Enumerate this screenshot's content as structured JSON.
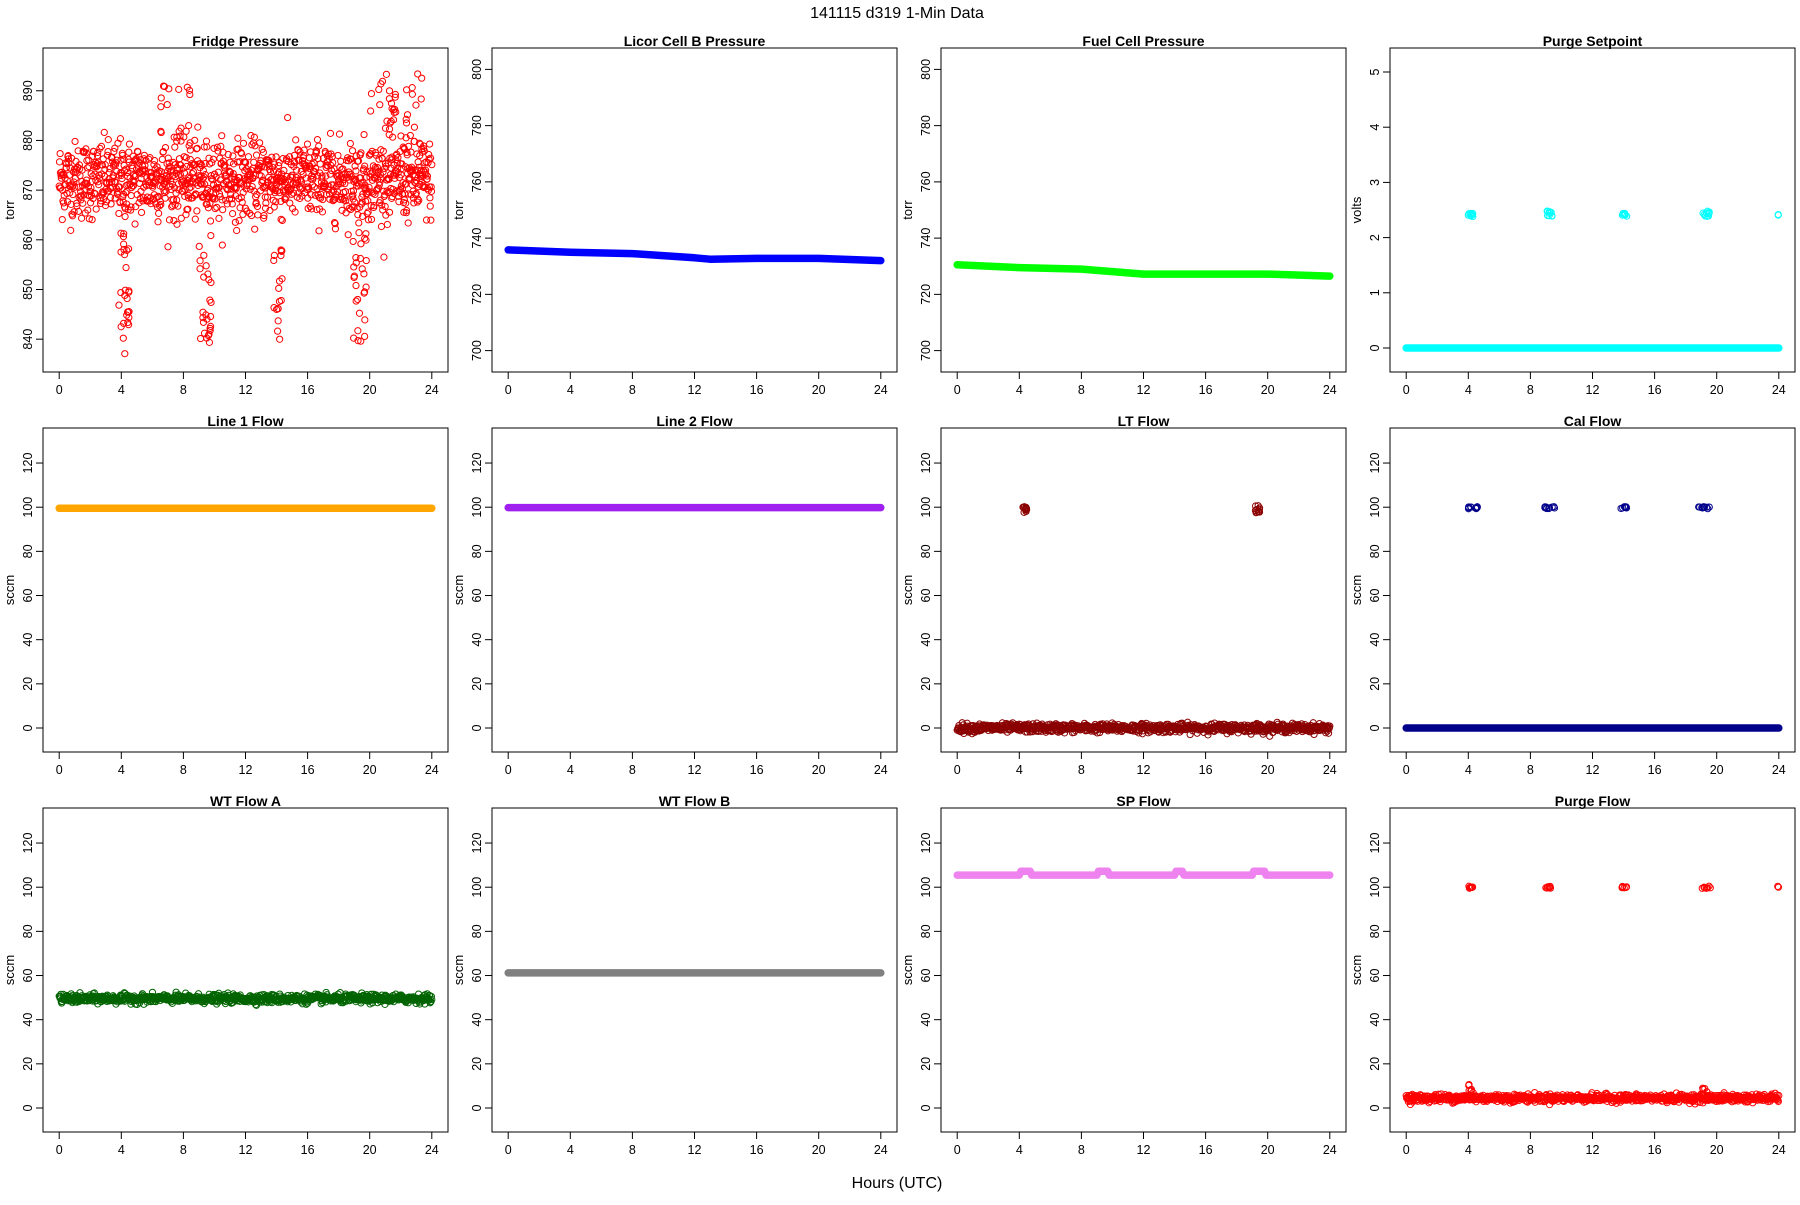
{
  "figure": {
    "title": "141115   d319   1-Min Data",
    "xlabel": "Hours (UTC)"
  },
  "chart_data": [
    {
      "type": "scatter",
      "title": "Fridge Pressure",
      "ylabel": "torr",
      "xlabel": "",
      "xlim": [
        0,
        24
      ],
      "ylim": [
        836,
        896
      ],
      "xticks": [
        0,
        4,
        8,
        12,
        16,
        20,
        24
      ],
      "yticks": [
        840,
        850,
        860,
        870,
        880,
        890
      ],
      "color": "#ff0000",
      "marker": "open-circle",
      "series": [
        {
          "kind": "noise",
          "base": 872,
          "amp": 7,
          "n": 1200
        },
        {
          "kind": "cluster",
          "x": [
            3.8,
            4.5
          ],
          "y": [
            837,
            862
          ],
          "n": 28
        },
        {
          "kind": "cluster",
          "x": [
            9.0,
            9.8
          ],
          "y": [
            838,
            862
          ],
          "n": 26
        },
        {
          "kind": "cluster",
          "x": [
            13.8,
            14.4
          ],
          "y": [
            838,
            860
          ],
          "n": 18
        },
        {
          "kind": "cluster",
          "x": [
            18.9,
            19.8
          ],
          "y": [
            837,
            862
          ],
          "n": 28
        },
        {
          "kind": "cluster",
          "x": [
            20.0,
            23.5
          ],
          "y": [
            878,
            894
          ],
          "n": 40
        },
        {
          "kind": "cluster",
          "x": [
            6.5,
            8.5
          ],
          "y": [
            878,
            892
          ],
          "n": 20
        }
      ]
    },
    {
      "type": "scatter",
      "title": "Licor Cell B Pressure",
      "ylabel": "torr",
      "xlabel": "",
      "xlim": [
        0,
        24
      ],
      "ylim": [
        697,
        803
      ],
      "xticks": [
        0,
        4,
        8,
        12,
        16,
        20,
        24
      ],
      "yticks": [
        700,
        720,
        740,
        760,
        780,
        800
      ],
      "color": "#0000ff",
      "marker": "filled-band",
      "series": [
        {
          "kind": "line",
          "points": [
            [
              0,
              735.8
            ],
            [
              4,
              735
            ],
            [
              8,
              734.5
            ],
            [
              12,
              733
            ],
            [
              13,
              732.5
            ],
            [
              16,
              732.8
            ],
            [
              20,
              732.8
            ],
            [
              24,
              732
            ]
          ]
        }
      ]
    },
    {
      "type": "scatter",
      "title": "Fuel Cell Pressure",
      "ylabel": "torr",
      "xlabel": "",
      "xlim": [
        0,
        24
      ],
      "ylim": [
        697,
        803
      ],
      "xticks": [
        0,
        4,
        8,
        12,
        16,
        20,
        24
      ],
      "yticks": [
        700,
        720,
        740,
        760,
        780,
        800
      ],
      "color": "#00ff00",
      "marker": "filled-band",
      "series": [
        {
          "kind": "line",
          "points": [
            [
              0,
              730.5
            ],
            [
              4,
              729.5
            ],
            [
              8,
              729
            ],
            [
              12,
              727.2
            ],
            [
              16,
              727.2
            ],
            [
              20,
              727.2
            ],
            [
              24,
              726.5
            ]
          ]
        }
      ]
    },
    {
      "type": "scatter",
      "title": "Purge Setpoint",
      "ylabel": "volts",
      "xlabel": "",
      "xlim": [
        0,
        24
      ],
      "ylim": [
        -0.2,
        5.2
      ],
      "xticks": [
        0,
        4,
        8,
        12,
        16,
        20,
        24
      ],
      "yticks": [
        0,
        1,
        2,
        3,
        4,
        5
      ],
      "color": "#00ffff",
      "marker": "open-circle",
      "series": [
        {
          "kind": "line",
          "points": [
            [
              0,
              0
            ],
            [
              24,
              0
            ]
          ]
        },
        {
          "kind": "cluster",
          "x": [
            4.0,
            4.3
          ],
          "y": [
            2.38,
            2.44
          ],
          "n": 10
        },
        {
          "kind": "cluster",
          "x": [
            9.0,
            9.4
          ],
          "y": [
            2.38,
            2.48
          ],
          "n": 10
        },
        {
          "kind": "cluster",
          "x": [
            13.9,
            14.2
          ],
          "y": [
            2.38,
            2.44
          ],
          "n": 8
        },
        {
          "kind": "cluster",
          "x": [
            19.0,
            19.6
          ],
          "y": [
            2.38,
            2.48
          ],
          "n": 10
        },
        {
          "kind": "cluster",
          "x": [
            23.9,
            24.0
          ],
          "y": [
            2.38,
            2.42
          ],
          "n": 2
        }
      ]
    },
    {
      "type": "scatter",
      "title": "Line 1 Flow",
      "ylabel": "sccm",
      "xlabel": "",
      "xlim": [
        0,
        24
      ],
      "ylim": [
        -5,
        130
      ],
      "xticks": [
        0,
        4,
        8,
        12,
        16,
        20,
        24
      ],
      "yticks": [
        0,
        20,
        40,
        60,
        80,
        100,
        120
      ],
      "color": "#ffa500",
      "marker": "filled-band",
      "series": [
        {
          "kind": "line",
          "points": [
            [
              0,
              99.5
            ],
            [
              24,
              99.5
            ]
          ]
        }
      ]
    },
    {
      "type": "scatter",
      "title": "Line 2 Flow",
      "ylabel": "sccm",
      "xlabel": "",
      "xlim": [
        0,
        24
      ],
      "ylim": [
        -5,
        130
      ],
      "xticks": [
        0,
        4,
        8,
        12,
        16,
        20,
        24
      ],
      "yticks": [
        0,
        20,
        40,
        60,
        80,
        100,
        120
      ],
      "color": "#a020f0",
      "marker": "filled-band",
      "series": [
        {
          "kind": "line",
          "points": [
            [
              0,
              99.8
            ],
            [
              24,
              99.8
            ]
          ]
        }
      ]
    },
    {
      "type": "scatter",
      "title": "LT Flow",
      "ylabel": "sccm",
      "xlabel": "",
      "xlim": [
        0,
        24
      ],
      "ylim": [
        -5,
        130
      ],
      "xticks": [
        0,
        4,
        8,
        12,
        16,
        20,
        24
      ],
      "yticks": [
        0,
        20,
        40,
        60,
        80,
        100,
        120
      ],
      "color": "#8b0000",
      "marker": "open-circle",
      "series": [
        {
          "kind": "noise",
          "base": 0,
          "amp": 1.8,
          "n": 900
        },
        {
          "kind": "cluster",
          "x": [
            4.2,
            4.5
          ],
          "y": [
            97.5,
            101
          ],
          "n": 12
        },
        {
          "kind": "cluster",
          "x": [
            19.2,
            19.5
          ],
          "y": [
            97.5,
            101
          ],
          "n": 12
        }
      ]
    },
    {
      "type": "scatter",
      "title": "Cal Flow",
      "ylabel": "sccm",
      "xlabel": "",
      "xlim": [
        0,
        24
      ],
      "ylim": [
        -5,
        130
      ],
      "xticks": [
        0,
        4,
        8,
        12,
        16,
        20,
        24
      ],
      "yticks": [
        0,
        20,
        40,
        60,
        80,
        100,
        120
      ],
      "color": "#00008b",
      "marker": "open-circle",
      "series": [
        {
          "kind": "line",
          "points": [
            [
              0,
              0
            ],
            [
              24,
              0
            ]
          ]
        },
        {
          "kind": "cluster",
          "x": [
            4.0,
            4.6
          ],
          "y": [
            99.3,
            100.3
          ],
          "n": 10
        },
        {
          "kind": "cluster",
          "x": [
            8.9,
            9.6
          ],
          "y": [
            99.3,
            100.3
          ],
          "n": 10
        },
        {
          "kind": "cluster",
          "x": [
            13.8,
            14.4
          ],
          "y": [
            99.3,
            100.3
          ],
          "n": 8
        },
        {
          "kind": "cluster",
          "x": [
            18.8,
            19.6
          ],
          "y": [
            99.3,
            100.3
          ],
          "n": 10
        }
      ]
    },
    {
      "type": "scatter",
      "title": "WT Flow A",
      "ylabel": "sccm",
      "xlabel": "",
      "xlim": [
        0,
        24
      ],
      "ylim": [
        -5,
        130
      ],
      "xticks": [
        0,
        4,
        8,
        12,
        16,
        20,
        24
      ],
      "yticks": [
        0,
        20,
        40,
        60,
        80,
        100,
        120
      ],
      "color": "#006400",
      "marker": "open-circle",
      "series": [
        {
          "kind": "noise",
          "base": 49.5,
          "amp": 1.8,
          "n": 900
        }
      ]
    },
    {
      "type": "scatter",
      "title": "WT Flow B",
      "ylabel": "sccm",
      "xlabel": "",
      "xlim": [
        0,
        24
      ],
      "ylim": [
        -5,
        130
      ],
      "xticks": [
        0,
        4,
        8,
        12,
        16,
        20,
        24
      ],
      "yticks": [
        0,
        20,
        40,
        60,
        80,
        100,
        120
      ],
      "color": "#808080",
      "marker": "filled-band",
      "series": [
        {
          "kind": "line",
          "points": [
            [
              0,
              61.2
            ],
            [
              24,
              61.2
            ]
          ]
        }
      ]
    },
    {
      "type": "scatter",
      "title": "SP Flow",
      "ylabel": "sccm",
      "xlabel": "",
      "xlim": [
        0,
        24
      ],
      "ylim": [
        -5,
        130
      ],
      "xticks": [
        0,
        4,
        8,
        12,
        16,
        20,
        24
      ],
      "yticks": [
        0,
        20,
        40,
        60,
        80,
        100,
        120
      ],
      "color": "#ee82ee",
      "marker": "filled-band",
      "series": [
        {
          "kind": "line",
          "points": [
            [
              0,
              105.5
            ],
            [
              4.0,
              105.5
            ],
            [
              4.1,
              107.2
            ],
            [
              4.7,
              107.2
            ],
            [
              4.8,
              105.5
            ],
            [
              9.0,
              105.5
            ],
            [
              9.1,
              107.2
            ],
            [
              9.7,
              107.2
            ],
            [
              9.8,
              105.5
            ],
            [
              14.0,
              105.5
            ],
            [
              14.1,
              107.2
            ],
            [
              14.5,
              107.2
            ],
            [
              14.6,
              105.5
            ],
            [
              19.0,
              105.5
            ],
            [
              19.1,
              107.2
            ],
            [
              19.8,
              107.2
            ],
            [
              19.9,
              105.5
            ],
            [
              24,
              105.5
            ]
          ]
        }
      ]
    },
    {
      "type": "scatter",
      "title": "Purge Flow",
      "ylabel": "sccm",
      "xlabel": "",
      "xlim": [
        0,
        24
      ],
      "ylim": [
        -5,
        130
      ],
      "xticks": [
        0,
        4,
        8,
        12,
        16,
        20,
        24
      ],
      "yticks": [
        0,
        20,
        40,
        60,
        80,
        100,
        120
      ],
      "color": "#ff0000",
      "marker": "open-circle",
      "series": [
        {
          "kind": "noise",
          "base": 4.5,
          "amp": 1.6,
          "n": 900
        },
        {
          "kind": "cluster",
          "x": [
            4.0,
            4.4
          ],
          "y": [
            6,
            11
          ],
          "n": 8
        },
        {
          "kind": "cluster",
          "x": [
            19.0,
            19.4
          ],
          "y": [
            6,
            9
          ],
          "n": 6
        },
        {
          "kind": "cluster",
          "x": [
            4.0,
            4.3
          ],
          "y": [
            99.5,
            100.5
          ],
          "n": 8
        },
        {
          "kind": "cluster",
          "x": [
            8.9,
            9.3
          ],
          "y": [
            99.5,
            100.5
          ],
          "n": 8
        },
        {
          "kind": "cluster",
          "x": [
            13.9,
            14.2
          ],
          "y": [
            99.5,
            100.5
          ],
          "n": 6
        },
        {
          "kind": "cluster",
          "x": [
            19.0,
            19.6
          ],
          "y": [
            99.5,
            100.5
          ],
          "n": 8
        },
        {
          "kind": "cluster",
          "x": [
            23.9,
            24.0
          ],
          "y": [
            99.5,
            100.5
          ],
          "n": 2
        }
      ]
    }
  ]
}
